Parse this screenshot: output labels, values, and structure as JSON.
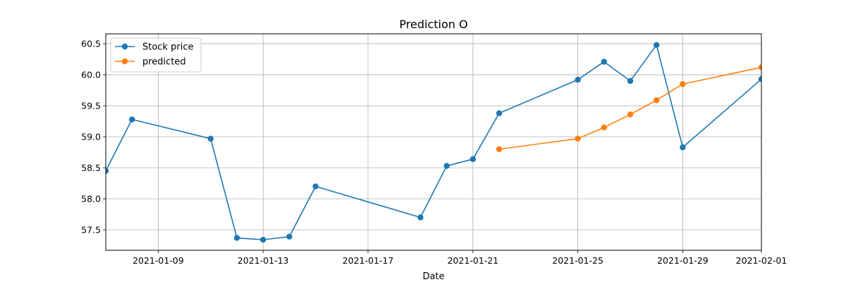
{
  "chart_data": {
    "type": "line",
    "title": "Prediction O",
    "xlabel": "Date",
    "ylabel": "",
    "xlim": [
      "2021-01-07",
      "2021-02-01"
    ],
    "ylim": [
      57.17,
      60.66
    ],
    "grid": true,
    "legend_position": "top-left",
    "x_ticks": [
      "2021-01-09",
      "2021-01-13",
      "2021-01-17",
      "2021-01-21",
      "2021-01-25",
      "2021-01-29",
      "2021-02-01"
    ],
    "y_ticks": [
      57.5,
      58.0,
      58.5,
      59.0,
      59.5,
      60.0,
      60.5
    ],
    "series": [
      {
        "name": "Stock price",
        "color": "#1f77b4",
        "x": [
          "2021-01-07",
          "2021-01-08",
          "2021-01-11",
          "2021-01-12",
          "2021-01-13",
          "2021-01-14",
          "2021-01-15",
          "2021-01-19",
          "2021-01-20",
          "2021-01-21",
          "2021-01-22",
          "2021-01-25",
          "2021-01-26",
          "2021-01-27",
          "2021-01-28",
          "2021-01-29",
          "2021-02-01"
        ],
        "y": [
          58.45,
          59.28,
          58.97,
          57.37,
          57.34,
          57.39,
          58.2,
          57.7,
          58.53,
          58.64,
          59.38,
          59.92,
          60.21,
          59.9,
          60.48,
          58.83,
          59.93
        ]
      },
      {
        "name": "predicted",
        "color": "#ff7f0e",
        "x": [
          "2021-01-22",
          "2021-01-25",
          "2021-01-26",
          "2021-01-27",
          "2021-01-28",
          "2021-01-29",
          "2021-02-01"
        ],
        "y": [
          58.8,
          58.97,
          59.15,
          59.36,
          59.59,
          59.85,
          60.12
        ]
      }
    ]
  }
}
